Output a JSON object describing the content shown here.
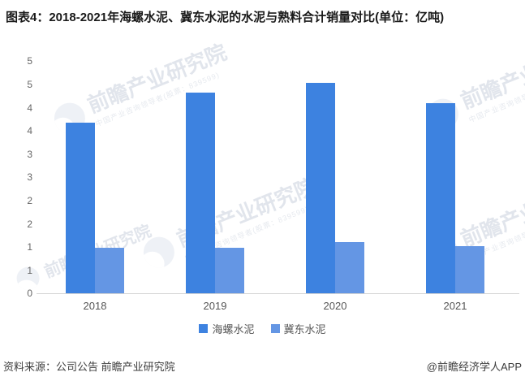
{
  "title": "图表4：2018-2021年海螺水泥、冀东水泥的水泥与熟料合计销量对比(单位：亿吨)",
  "chart_data": {
    "type": "bar",
    "title": "2018-2021年海螺水泥、冀东水泥的水泥与熟料合计销量对比",
    "unit": "亿吨",
    "categories": [
      "2018",
      "2019",
      "2020",
      "2021"
    ],
    "series": [
      {
        "name": "海螺水泥",
        "color": "#3D82E0",
        "values": [
          3.68,
          4.32,
          4.53,
          4.1
        ]
      },
      {
        "name": "冀东水泥",
        "color": "#6496E4",
        "values": [
          0.98,
          0.98,
          1.1,
          1.02
        ]
      }
    ],
    "ylim": [
      0,
      5
    ],
    "y_tick_step": 0.5,
    "y_tick_labels_displayed": [
      "5",
      "5",
      "4",
      "4",
      "3",
      "3",
      "2",
      "2",
      "1",
      "1",
      "0"
    ],
    "grid": false,
    "legend_position": "bottom",
    "xlabel": "",
    "ylabel": ""
  },
  "footer": {
    "source": "资料来源：公司公告 前瞻产业研究院",
    "credit": "@前瞻经济学人APP"
  },
  "watermark": {
    "text": "前瞻产业研究院",
    "tagline": "中国产业咨询领导者(股票：839599)"
  },
  "colors": {
    "series_dark": "#3D82E0",
    "series_light": "#6496E4",
    "axis_line": "#d4d4d4",
    "tick_text": "#666666",
    "title_text": "#1a1a1a"
  }
}
